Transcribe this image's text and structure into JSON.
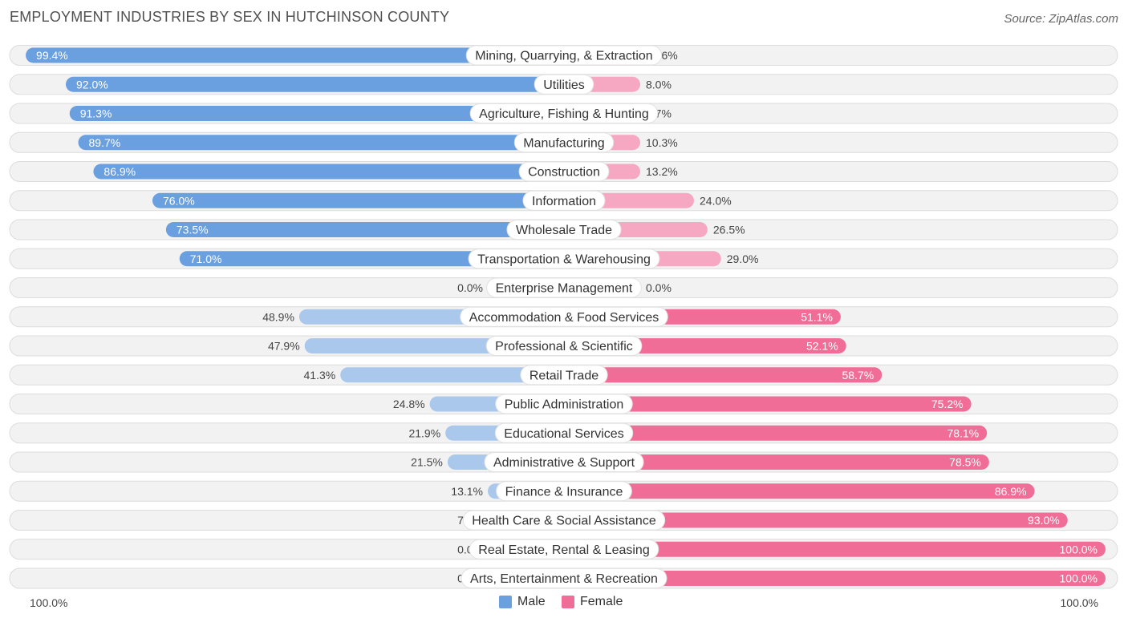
{
  "title": "EMPLOYMENT INDUSTRIES BY SEX IN HUTCHINSON COUNTY",
  "source": "Source: ZipAtlas.com",
  "colors": {
    "male_dark": "#6a9fe0",
    "male_light": "#a9c8ec",
    "female_dark": "#f06d98",
    "female_light": "#f6a7c1",
    "row_bg": "#f2f2f2",
    "row_border": "#dcdcdc"
  },
  "axis": {
    "left_label": "100.0%",
    "right_label": "100.0%"
  },
  "legend": {
    "male": "Male",
    "female": "Female"
  },
  "chart_data": {
    "type": "bar",
    "orientation": "horizontal-diverging",
    "categories": [
      "Mining, Quarrying, & Extraction",
      "Utilities",
      "Agriculture, Fishing & Hunting",
      "Manufacturing",
      "Construction",
      "Information",
      "Wholesale Trade",
      "Transportation & Warehousing",
      "Enterprise Management",
      "Accommodation & Food Services",
      "Professional & Scientific",
      "Retail Trade",
      "Public Administration",
      "Educational Services",
      "Administrative & Support",
      "Finance & Insurance",
      "Health Care & Social Assistance",
      "Real Estate, Rental & Leasing",
      "Arts, Entertainment & Recreation"
    ],
    "series": [
      {
        "name": "Male",
        "values": [
          99.4,
          92.0,
          91.3,
          89.7,
          86.9,
          76.0,
          73.5,
          71.0,
          0.0,
          48.9,
          47.9,
          41.3,
          24.8,
          21.9,
          21.5,
          13.1,
          7.0,
          0.0,
          0.0
        ],
        "labels": [
          "99.4%",
          "92.0%",
          "91.3%",
          "89.7%",
          "86.9%",
          "76.0%",
          "73.5%",
          "71.0%",
          "0.0%",
          "48.9%",
          "47.9%",
          "41.3%",
          "24.8%",
          "21.9%",
          "21.5%",
          "13.1%",
          "7.0%",
          "0.0%",
          "0.0%"
        ]
      },
      {
        "name": "Female",
        "values": [
          0.56,
          8.0,
          8.7,
          10.3,
          13.2,
          24.0,
          26.5,
          29.0,
          0.0,
          51.1,
          52.1,
          58.7,
          75.2,
          78.1,
          78.5,
          86.9,
          93.0,
          100.0,
          100.0
        ],
        "labels": [
          "0.56%",
          "8.0%",
          "8.7%",
          "10.3%",
          "13.2%",
          "24.0%",
          "26.5%",
          "29.0%",
          "0.0%",
          "51.1%",
          "52.1%",
          "58.7%",
          "75.2%",
          "78.1%",
          "78.5%",
          "86.9%",
          "93.0%",
          "100.0%",
          "100.0%"
        ]
      }
    ],
    "xlim": [
      -100,
      100
    ],
    "legend_position": "bottom-center"
  }
}
